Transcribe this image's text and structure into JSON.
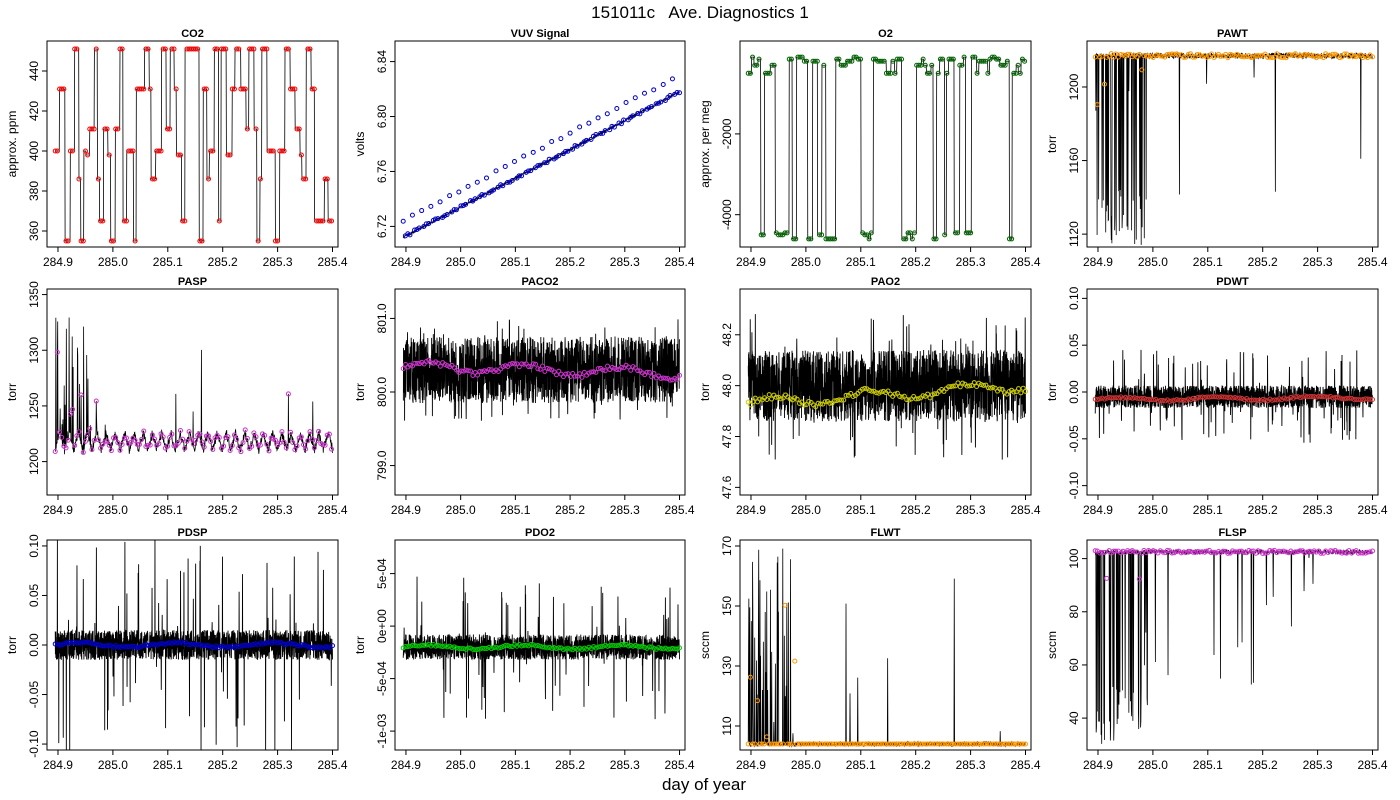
{
  "figure": {
    "title": "151011c   Ave. Diagnostics 1",
    "xlabel": "day of year"
  },
  "chart_data": [
    {
      "type": "line",
      "title": "CO2",
      "ylabel": "approx. ppm",
      "xlim": [
        284.88,
        285.41
      ],
      "ylim": [
        352,
        455
      ],
      "xticks": [
        284.9,
        285.0,
        285.1,
        285.2,
        285.3,
        285.4
      ],
      "xtick_labels": [
        "284.9",
        "285.0",
        "285.1",
        "285.2",
        "285.3",
        "285.4"
      ],
      "yticks": [
        360,
        380,
        400,
        420,
        440
      ],
      "ytick_labels": [
        "360",
        "380",
        "400",
        "420",
        "440"
      ],
      "pattern": "steps",
      "seed": 1,
      "base": 398,
      "levels": [
        355,
        365,
        386,
        398,
        400,
        411,
        431,
        451
      ],
      "spike_range": [
        355,
        451
      ],
      "marker_color": "#ff0000",
      "marker_noise": 0.3
    },
    {
      "type": "line",
      "title": "VUV Signal",
      "ylabel": "volts",
      "xlim": [
        284.88,
        285.41
      ],
      "ylim": [
        6.705,
        6.855
      ],
      "xticks": [
        284.9,
        285.0,
        285.1,
        285.2,
        285.3,
        285.4
      ],
      "xtick_labels": [
        "284.9",
        "285.0",
        "285.1",
        "285.2",
        "285.3",
        "285.4"
      ],
      "yticks": [
        6.72,
        6.76,
        6.8,
        6.84
      ],
      "ytick_labels": [
        "6.72",
        "6.76",
        "6.80",
        "6.84"
      ],
      "pattern": "drift",
      "seed": 2,
      "start": 6.712,
      "end": 6.818,
      "spike_height": 0.03,
      "marker_color": "#0000cc"
    },
    {
      "type": "line",
      "title": "O2",
      "ylabel": "approx. per meg",
      "xlim": [
        284.88,
        285.41
      ],
      "ylim": [
        -4800,
        300
      ],
      "xticks": [
        284.9,
        285.0,
        285.1,
        285.2,
        285.3,
        285.4
      ],
      "xtick_labels": [
        "284.9",
        "285.0",
        "285.1",
        "285.2",
        "285.3",
        "285.4"
      ],
      "yticks": [
        -4000,
        -2000
      ],
      "ytick_labels": [
        "-4000",
        "-2000"
      ],
      "pattern": "steps",
      "seed": 3,
      "base": -200,
      "levels": [
        -4600,
        -4500,
        -4450,
        -300,
        -200,
        -100,
        -500,
        -150
      ],
      "spike_range": [
        -4600,
        -50
      ],
      "marker_color": "#006600",
      "marker_noise": 30
    },
    {
      "type": "line",
      "title": "PAWT",
      "ylabel": "torr",
      "xlim": [
        284.88,
        285.41
      ],
      "ylim": [
        1113,
        1225
      ],
      "xticks": [
        284.9,
        285.0,
        285.1,
        285.2,
        285.3,
        285.4
      ],
      "xtick_labels": [
        "284.9",
        "285.0",
        "285.1",
        "285.2",
        "285.3",
        "285.4"
      ],
      "yticks": [
        1120,
        1160,
        1200
      ],
      "ytick_labels": [
        "1120",
        "1160",
        "1200"
      ],
      "pattern": "drops",
      "seed": 4,
      "base": 1217,
      "noise": 1.5,
      "drop_to": 1114,
      "marker_color": "#ff9900"
    },
    {
      "type": "line",
      "title": "PASP",
      "ylabel": "torr",
      "xlim": [
        284.88,
        285.41
      ],
      "ylim": [
        1170,
        1355
      ],
      "xticks": [
        284.9,
        285.0,
        285.1,
        285.2,
        285.3,
        285.4
      ],
      "xtick_labels": [
        "284.9",
        "285.0",
        "285.1",
        "285.2",
        "285.3",
        "285.4"
      ],
      "yticks": [
        1200,
        1250,
        1300,
        1350
      ],
      "ytick_labels": [
        "1200",
        "1250",
        "1300",
        "1350"
      ],
      "pattern": "sawtooth",
      "seed": 5,
      "base": 1215,
      "amp": 15,
      "marker_color": "#cc33cc"
    },
    {
      "type": "line",
      "title": "PACO2",
      "ylabel": "torr",
      "xlim": [
        284.88,
        285.41
      ],
      "ylim": [
        798.6,
        801.4
      ],
      "xticks": [
        284.9,
        285.0,
        285.1,
        285.2,
        285.3,
        285.4
      ],
      "xtick_labels": [
        "284.9",
        "285.0",
        "285.1",
        "285.2",
        "285.3",
        "285.4"
      ],
      "yticks": [
        799.0,
        800.0,
        801.0
      ],
      "ytick_labels": [
        "799.0",
        "800.0",
        "801.0"
      ],
      "pattern": "band",
      "seed": 6,
      "center": 800.3,
      "band": 0.45,
      "spike": 0.7,
      "marker_start": 800.35,
      "marker_end": 800.25,
      "marker_color": "#cc33cc"
    },
    {
      "type": "line",
      "title": "PAO2",
      "ylabel": "torr",
      "xlim": [
        284.88,
        285.41
      ],
      "ylim": [
        47.57,
        48.38
      ],
      "xticks": [
        284.9,
        285.0,
        285.1,
        285.2,
        285.3,
        285.4
      ],
      "xtick_labels": [
        "284.9",
        "285.0",
        "285.1",
        "285.2",
        "285.3",
        "285.4"
      ],
      "yticks": [
        47.6,
        47.8,
        48.0,
        48.2
      ],
      "ytick_labels": [
        "47.6",
        "47.8",
        "48.0",
        "48.2"
      ],
      "pattern": "band",
      "seed": 7,
      "center": 48.0,
      "band": 0.14,
      "spike": 0.3,
      "marker_start": 47.93,
      "marker_end": 48.0,
      "marker_color": "#cccc00"
    },
    {
      "type": "line",
      "title": "PDWT",
      "ylabel": "torr",
      "xlim": [
        284.88,
        285.41
      ],
      "ylim": [
        -0.11,
        0.11
      ],
      "xticks": [
        284.9,
        285.0,
        285.1,
        285.2,
        285.3,
        285.4
      ],
      "xtick_labels": [
        "284.9",
        "285.0",
        "285.1",
        "285.2",
        "285.3",
        "285.4"
      ],
      "yticks": [
        -0.1,
        -0.05,
        0.0,
        0.05,
        0.1
      ],
      "ytick_labels": [
        "-0.10",
        "-0.05",
        "0.00",
        "0.05",
        "0.10"
      ],
      "pattern": "band",
      "seed": 8,
      "center": -0.005,
      "band": 0.012,
      "spike": 0.05,
      "marker_start": -0.008,
      "marker_end": -0.006,
      "marker_color": "#cc3333"
    },
    {
      "type": "line",
      "title": "PDSP",
      "ylabel": "torr",
      "xlim": [
        284.88,
        285.41
      ],
      "ylim": [
        -0.106,
        0.106
      ],
      "xticks": [
        284.9,
        285.0,
        285.1,
        285.2,
        285.3,
        285.4
      ],
      "xtick_labels": [
        "284.9",
        "285.0",
        "285.1",
        "285.2",
        "285.3",
        "285.4"
      ],
      "yticks": [
        -0.1,
        -0.05,
        0.0,
        0.05,
        0.1
      ],
      "ytick_labels": [
        "-0.10",
        "-0.05",
        "0.00",
        "0.05",
        "0.10"
      ],
      "pattern": "band",
      "seed": 9,
      "center": 0.0,
      "band": 0.015,
      "spike": 0.11,
      "marker_start": 0.0,
      "marker_end": 0.0,
      "marker_color": "#0000cc"
    },
    {
      "type": "line",
      "title": "PDO2",
      "ylabel": "torr",
      "xlim": [
        284.88,
        285.41
      ],
      "ylim": [
        -0.00118,
        0.00082
      ],
      "xticks": [
        284.9,
        285.0,
        285.1,
        285.2,
        285.3,
        285.4
      ],
      "xtick_labels": [
        "284.9",
        "285.0",
        "285.1",
        "285.2",
        "285.3",
        "285.4"
      ],
      "yticks": [
        -0.001,
        -0.0005,
        0.0,
        0.0005
      ],
      "ytick_labels": [
        "-1e-03",
        "-5e-04",
        "0e+00",
        "5e-04"
      ],
      "pattern": "band",
      "seed": 10,
      "center": -0.0002,
      "band": 0.00012,
      "spike": 0.0007,
      "marker_start": -0.0002,
      "marker_end": -0.0002,
      "marker_color": "#00cc00"
    },
    {
      "type": "line",
      "title": "FLWT",
      "ylabel": "sccm",
      "xlim": [
        284.88,
        285.41
      ],
      "ylim": [
        102,
        172
      ],
      "xticks": [
        284.9,
        285.0,
        285.1,
        285.2,
        285.3,
        285.4
      ],
      "xtick_labels": [
        "284.9",
        "285.0",
        "285.1",
        "285.2",
        "285.3",
        "285.4"
      ],
      "yticks": [
        110,
        130,
        150,
        170
      ],
      "ytick_labels": [
        "110",
        "130",
        "150",
        "170"
      ],
      "pattern": "spikesup",
      "seed": 11,
      "base": 104,
      "noise": 0.8,
      "spike_to": 170,
      "marker_color": "#ff9900"
    },
    {
      "type": "line",
      "title": "FLSP",
      "ylabel": "sccm",
      "xlim": [
        284.88,
        285.41
      ],
      "ylim": [
        28,
        107
      ],
      "xticks": [
        284.9,
        285.0,
        285.1,
        285.2,
        285.3,
        285.4
      ],
      "xtick_labels": [
        "284.9",
        "285.0",
        "285.1",
        "285.2",
        "285.3",
        "285.4"
      ],
      "yticks": [
        40,
        60,
        80,
        100
      ],
      "ytick_labels": [
        "40",
        "60",
        "80",
        "100"
      ],
      "pattern": "drops",
      "seed": 12,
      "base": 102.5,
      "noise": 0.8,
      "drop_to": 30,
      "marker_color": "#cc33cc"
    }
  ]
}
